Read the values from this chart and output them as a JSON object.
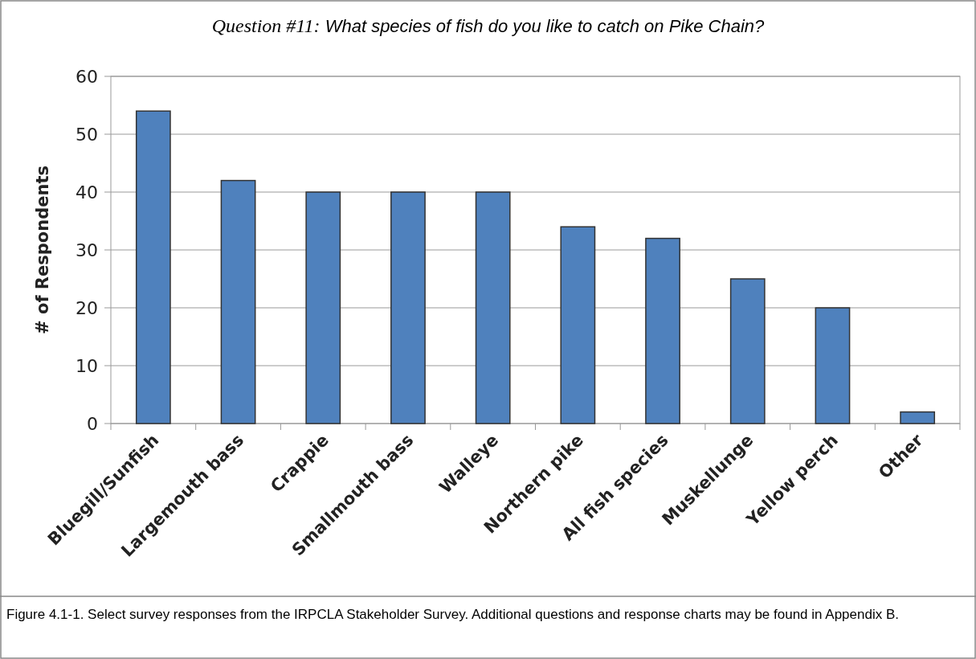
{
  "chart_data": {
    "type": "bar",
    "title": "Question #11: What species of fish do you like to catch on Pike Chain?",
    "ylabel": "# of Respondents",
    "categories": [
      "Bluegill/Sunfish",
      "Largemouth bass",
      "Crappie",
      "Smallmouth bass",
      "Walleye",
      "Northern pike",
      "All fish species",
      "Muskellunge",
      "Yellow perch",
      "Other"
    ],
    "values": [
      54,
      42,
      40,
      40,
      40,
      34,
      32,
      25,
      20,
      2
    ],
    "color": "#4f81bd",
    "ylim": [
      0,
      60
    ],
    "yticks": [
      0,
      10,
      20,
      30,
      40,
      50,
      60
    ],
    "grid": "y",
    "annotations": [
      "Figure 4.1-1.  Select survey responses from the IRPCLA Stakeholder Survey.  Additional questions and response charts may be found in Appendix B."
    ]
  }
}
